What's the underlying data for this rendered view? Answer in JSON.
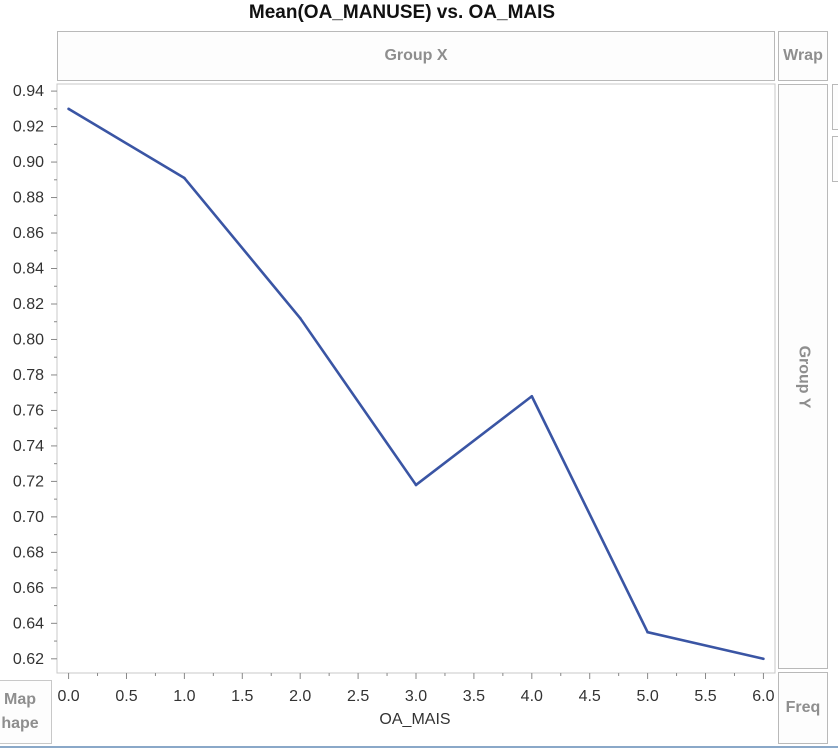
{
  "chart_data": {
    "type": "line",
    "title": "Mean(OA_MANUSE) vs. OA_MAIS",
    "xlabel": "OA_MAIS",
    "ylabel": "",
    "xlim": [
      -0.1,
      6.1
    ],
    "ylim": [
      0.612,
      0.944
    ],
    "x_ticks": [
      0.0,
      0.5,
      1.0,
      1.5,
      2.0,
      2.5,
      3.0,
      3.5,
      4.0,
      4.5,
      5.0,
      5.5,
      6.0
    ],
    "y_ticks": [
      0.62,
      0.64,
      0.66,
      0.68,
      0.7,
      0.72,
      0.74,
      0.76,
      0.78,
      0.8,
      0.82,
      0.84,
      0.86,
      0.88,
      0.9,
      0.92,
      0.94
    ],
    "grid": false,
    "series": [
      {
        "color": "#3a55a4",
        "x": [
          0,
          1,
          2,
          3,
          4,
          5,
          6
        ],
        "y": [
          0.93,
          0.891,
          0.812,
          0.718,
          0.768,
          0.635,
          0.62
        ]
      }
    ]
  },
  "zones": {
    "group_x": "Group X",
    "wrap": "Wrap",
    "group_y": "Group Y",
    "freq": "Freq",
    "map_line1": "Map",
    "map_line2": "hape"
  }
}
